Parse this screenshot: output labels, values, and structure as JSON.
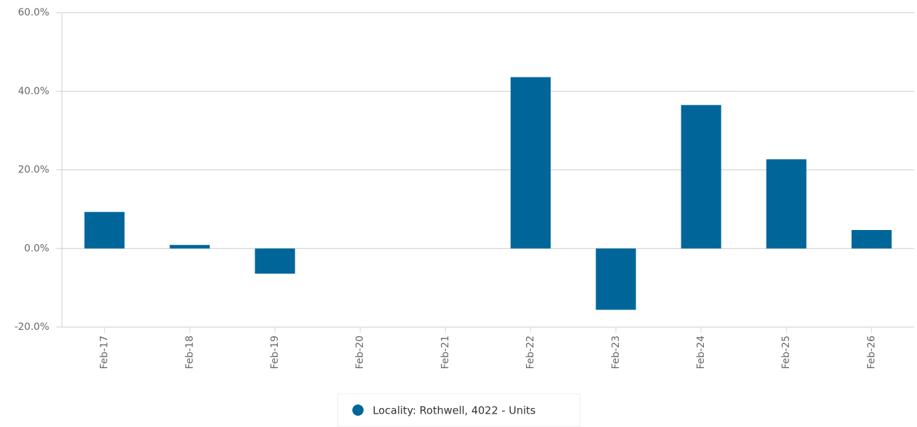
{
  "chart_data": {
    "type": "bar",
    "categories": [
      "Feb-17",
      "Feb-18",
      "Feb-19",
      "Feb-20",
      "Feb-21",
      "Feb-22",
      "Feb-23",
      "Feb-24",
      "Feb-25",
      "Feb-26"
    ],
    "series": [
      {
        "name": "Locality: Rothwell, 4022 - Units",
        "color": "#006699",
        "values": [
          9.3,
          0.9,
          -6.4,
          0,
          0,
          43.6,
          -15.6,
          36.5,
          22.7,
          4.7
        ]
      }
    ],
    "ylim": [
      -20,
      60
    ],
    "yticks": [
      {
        "value": -20,
        "label": "-20.0%"
      },
      {
        "value": 0,
        "label": "0.0%"
      },
      {
        "value": 20,
        "label": "20.0%"
      },
      {
        "value": 40,
        "label": "40.0%"
      },
      {
        "value": 60,
        "label": "60.0%"
      }
    ],
    "grid": true,
    "legend": "bottom"
  }
}
